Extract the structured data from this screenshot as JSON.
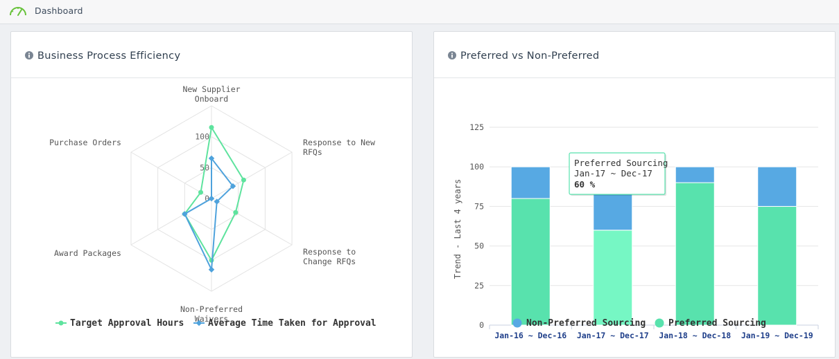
{
  "topbar": {
    "title": "Dashboard",
    "icon": "gauge-icon"
  },
  "cards": {
    "efficiency": {
      "title": "Business Process Efficiency"
    },
    "preferred": {
      "title": "Preferred vs Non-Preferred"
    }
  },
  "chart_data": [
    {
      "type": "radar",
      "axes": [
        [
          "New Supplier",
          "Onboard"
        ],
        [
          "Response to New",
          "RFQs"
        ],
        [
          "Response to",
          "Change RFQs"
        ],
        [
          "Non-Preferred",
          "Waivers"
        ],
        [
          "Award Packages"
        ],
        [
          "Purchase Orders"
        ]
      ],
      "radial_ticks": [
        "0",
        "50",
        "100"
      ],
      "rmax": 150,
      "series": [
        {
          "name": "Target Approval Hours",
          "color": "#5ee39e",
          "values": [
            115,
            60,
            45,
            100,
            50,
            20
          ]
        },
        {
          "name": "Average Time Taken for Approval",
          "color": "#4ea2dc",
          "values": [
            65,
            40,
            10,
            115,
            50,
            0
          ]
        }
      ]
    },
    {
      "type": "bar",
      "stacked": true,
      "ylabel": "Trend - Last 4 years",
      "ylim": [
        0,
        125
      ],
      "yticks": [
        "0",
        "25",
        "50",
        "75",
        "100",
        "125"
      ],
      "categories": [
        "Jan-16 ~ Dec-16",
        "Jan-17 ~ Dec-17",
        "Jan-18 ~ Dec-18",
        "Jan-19 ~ Dec-19"
      ],
      "series": [
        {
          "name": "Non-Preferred Sourcing",
          "color": "#57a9e3",
          "values": [
            20,
            40,
            10,
            25
          ]
        },
        {
          "name": "Preferred Sourcing",
          "color": "#58e2ad",
          "values": [
            80,
            60,
            90,
            75
          ]
        }
      ],
      "hover_color": "#76f7c4",
      "tooltip": {
        "line1": "Preferred Sourcing",
        "line2": "Jan-17 ~ Dec-17",
        "line3": "60 %"
      }
    }
  ]
}
